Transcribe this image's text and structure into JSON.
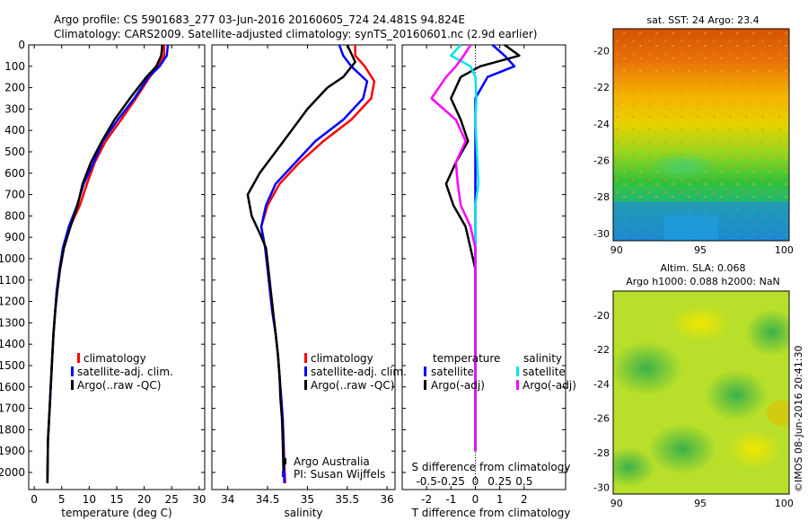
{
  "header": {
    "line1": "Argo profile: CS 5901683_277 03-Jun-2016 20160605_724 24.481S 94.824E",
    "line2": "Climatology: CARS2009. Satellite-adjusted climatology: synTS_20160601.nc (2.9d earlier)"
  },
  "credit": "©IMOS 08-Jun-2016 20:41:30",
  "colors": {
    "climatology": "#ff0000",
    "satellite": "#0000ff",
    "argo": "#000000",
    "sat_s": "#00e5ee",
    "argo_s": "#ff00ff"
  },
  "chart_data": [
    {
      "type": "line",
      "id": "temperature",
      "xlabel": "temperature (deg C)",
      "xlim": [
        -1,
        31
      ],
      "ylim": [
        2080,
        0
      ],
      "xticks": [
        0,
        5,
        10,
        15,
        20,
        25,
        30
      ],
      "yticks": [
        0,
        100,
        200,
        300,
        400,
        500,
        600,
        700,
        800,
        900,
        1000,
        1100,
        1200,
        1300,
        1400,
        1500,
        1600,
        1700,
        1800,
        1900,
        2000
      ],
      "legend": [
        "climatology",
        "satellite-adj. clim.",
        "Argo(..raw -QC)"
      ],
      "series": [
        {
          "name": "climatology",
          "color": "#ff0000",
          "x": [
            23.6,
            23.6,
            22.6,
            21.0,
            18.5,
            15.8,
            13.0,
            11.0,
            9.6,
            8.3,
            6.5,
            5.3,
            4.6,
            4.1,
            3.8,
            3.5,
            3.3,
            3.1,
            2.9,
            2.7,
            2.5,
            2.4
          ],
          "y": [
            0,
            50,
            100,
            150,
            250,
            350,
            450,
            550,
            650,
            750,
            850,
            950,
            1050,
            1150,
            1250,
            1350,
            1450,
            1550,
            1650,
            1750,
            1850,
            2050
          ]
        },
        {
          "name": "satellite-adj. clim.",
          "color": "#0000ff",
          "x": [
            24.3,
            24.1,
            22.8,
            20.8,
            18.2,
            15.2,
            12.5,
            10.8,
            9.0,
            7.8,
            6.3,
            5.2,
            4.6,
            4.1,
            3.8,
            3.5,
            3.3,
            3.1,
            2.9,
            2.7,
            2.5,
            2.4
          ],
          "y": [
            0,
            50,
            100,
            150,
            250,
            350,
            450,
            550,
            650,
            750,
            850,
            950,
            1050,
            1150,
            1250,
            1350,
            1450,
            1550,
            1650,
            1750,
            1850,
            2050
          ]
        },
        {
          "name": "Argo(..raw -QC)",
          "color": "#000000",
          "x": [
            23.3,
            23.1,
            22.2,
            20.4,
            17.4,
            14.6,
            12.3,
            10.3,
            8.8,
            7.9,
            6.6,
            5.4,
            4.7,
            4.2,
            3.8,
            3.5,
            3.3,
            3.1,
            2.9,
            2.7,
            2.5,
            2.4
          ],
          "y": [
            0,
            50,
            100,
            150,
            250,
            350,
            450,
            550,
            650,
            750,
            850,
            950,
            1050,
            1150,
            1250,
            1350,
            1450,
            1550,
            1650,
            1750,
            1850,
            2050
          ]
        }
      ]
    },
    {
      "type": "line",
      "id": "salinity",
      "xlabel": "salinity",
      "xlim": [
        33.8,
        36.1
      ],
      "ylim": [
        2080,
        0
      ],
      "xticks": [
        34,
        34.5,
        35,
        35.5,
        36
      ],
      "legend": [
        "climatology",
        "satellite-adj. clim.",
        "Argo(..raw -QC)"
      ],
      "annotation": [
        "Argo Australia",
        "PI: Susan Wijffels"
      ],
      "series": [
        {
          "name": "climatology",
          "color": "#ff0000",
          "x": [
            35.6,
            35.6,
            35.72,
            35.84,
            35.8,
            35.55,
            35.2,
            34.9,
            34.65,
            34.5,
            34.42,
            34.47,
            34.5,
            34.53,
            34.56,
            34.6,
            34.63,
            34.65,
            34.67,
            34.69,
            34.7,
            34.72
          ],
          "y": [
            0,
            50,
            100,
            170,
            250,
            350,
            450,
            550,
            650,
            750,
            850,
            950,
            1050,
            1150,
            1250,
            1350,
            1450,
            1550,
            1650,
            1750,
            1850,
            2050
          ]
        },
        {
          "name": "satellite-adj. clim.",
          "color": "#0000ff",
          "x": [
            35.4,
            35.45,
            35.55,
            35.75,
            35.7,
            35.45,
            35.1,
            34.85,
            34.6,
            34.48,
            34.42,
            34.47,
            34.5,
            34.53,
            34.56,
            34.6,
            34.63,
            34.65,
            34.67,
            34.69,
            34.7,
            34.71
          ],
          "y": [
            0,
            50,
            100,
            170,
            250,
            350,
            450,
            550,
            650,
            750,
            850,
            950,
            1050,
            1150,
            1250,
            1350,
            1450,
            1550,
            1650,
            1750,
            1850,
            2050
          ]
        },
        {
          "name": "Argo(..raw -QC)",
          "color": "#000000",
          "x": [
            35.5,
            35.6,
            35.45,
            35.25,
            35.0,
            34.8,
            34.6,
            34.4,
            34.25,
            34.3,
            34.4,
            34.48,
            34.51,
            34.54,
            34.57,
            34.6,
            34.63,
            34.65,
            34.66,
            34.68,
            34.69,
            34.7
          ],
          "y": [
            0,
            80,
            150,
            200,
            300,
            400,
            500,
            600,
            700,
            800,
            880,
            950,
            1050,
            1150,
            1250,
            1350,
            1450,
            1550,
            1650,
            1750,
            1850,
            2000
          ]
        }
      ]
    },
    {
      "type": "line",
      "id": "difference",
      "xlabel": "T difference from climatology",
      "xlabel_top": "S difference from climatology",
      "xlim": [
        -3,
        3.7
      ],
      "ylim": [
        2080,
        0
      ],
      "xticks": [
        -2,
        -1,
        0,
        1,
        2
      ],
      "xticks_top": [
        -0.5,
        -0.25,
        0,
        0.25,
        0.5
      ],
      "legend_t": {
        "title": "temperature",
        "items": [
          "satellite",
          "Argo(-adj)"
        ]
      },
      "legend_s": {
        "title": "salinity",
        "items": [
          "satellite",
          "Argo(-adj)"
        ]
      },
      "series": [
        {
          "name": "T satellite",
          "color": "#0000ff",
          "x": [
            0.7,
            1.2,
            1.6,
            0.5,
            0.0,
            0.0,
            0.0,
            0.0,
            0.0,
            0.0,
            0.0,
            0.0,
            0.0,
            0.0,
            0.0,
            0.0,
            0.0,
            0.0,
            0.0,
            0.0
          ],
          "y": [
            0,
            50,
            100,
            150,
            250,
            350,
            450,
            550,
            650,
            750,
            850,
            950,
            1050,
            1150,
            1250,
            1350,
            1450,
            1550,
            1650,
            1900
          ]
        },
        {
          "name": "T Argo(-adj)",
          "color": "#000000",
          "x": [
            1.2,
            1.8,
            0.2,
            -0.6,
            -1.0,
            -0.6,
            -0.3,
            -0.8,
            -1.2,
            -0.9,
            -0.4,
            -0.2,
            0.0,
            0.0,
            0.0,
            0.0,
            0.0,
            0.0,
            0.0,
            0.0
          ],
          "y": [
            0,
            50,
            100,
            150,
            250,
            350,
            450,
            550,
            650,
            750,
            850,
            950,
            1050,
            1150,
            1250,
            1350,
            1450,
            1550,
            1650,
            1900
          ]
        },
        {
          "name": "S satellite",
          "color": "#00e5ee",
          "x": [
            -0.15,
            -0.25,
            -0.05,
            0.0,
            0.01,
            0.0,
            0.01,
            0.02,
            0.03,
            0.0,
            0.0,
            0.0,
            0.0,
            0.0,
            0.0,
            0.0,
            0.0,
            0.0,
            0.0,
            0.0
          ],
          "y": [
            0,
            50,
            100,
            150,
            250,
            350,
            450,
            550,
            650,
            750,
            850,
            950,
            1050,
            1150,
            1250,
            1350,
            1450,
            1550,
            1650,
            1900
          ]
        },
        {
          "name": "S Argo(-adj)",
          "color": "#ff00ff",
          "x": [
            -0.05,
            -0.12,
            -0.2,
            -0.3,
            -0.45,
            -0.2,
            -0.1,
            -0.2,
            -0.18,
            -0.15,
            -0.05,
            0.0,
            0.0,
            0.0,
            0.0,
            0.0,
            0.0,
            0.0,
            0.0,
            0.0
          ],
          "y": [
            0,
            50,
            100,
            150,
            250,
            350,
            450,
            550,
            650,
            750,
            850,
            950,
            1050,
            1150,
            1250,
            1350,
            1450,
            1550,
            1650,
            1900
          ]
        }
      ]
    },
    {
      "type": "heatmap",
      "id": "sst_map",
      "title": "sat. SST: 24 Argo: 23.4",
      "xlim": [
        89.8,
        100.3
      ],
      "ylim": [
        -30.4,
        -18.8
      ],
      "xticks": [
        90,
        95,
        100
      ],
      "yticks": [
        -20,
        -22,
        -24,
        -26,
        -28,
        -30
      ]
    },
    {
      "type": "heatmap",
      "id": "sla_map",
      "title_lines": [
        "Altim. SLA: 0.068",
        "Argo h1000: 0.088 h2000: NaN"
      ],
      "xlim": [
        89.8,
        100.3
      ],
      "ylim": [
        -30.4,
        -18.6
      ],
      "xticks": [
        90,
        95,
        100
      ],
      "yticks": [
        -20,
        -22,
        -24,
        -26,
        -28,
        -30
      ]
    }
  ]
}
